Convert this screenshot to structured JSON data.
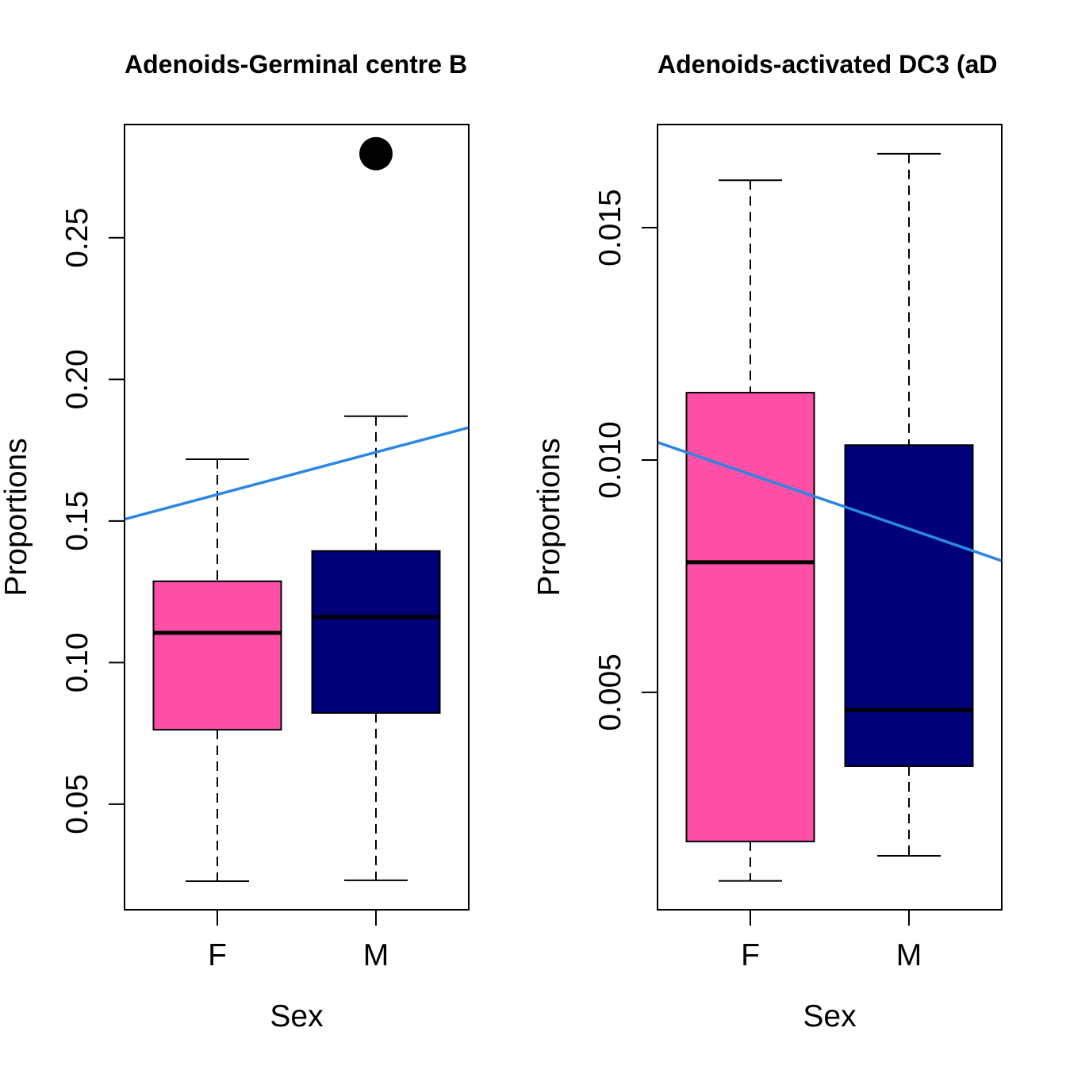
{
  "colors": {
    "F": "#FF4FA7",
    "M": "#000078",
    "trend": "#2B87E3",
    "outlier": "#000000"
  },
  "chart_data": [
    {
      "type": "boxplot",
      "title": "Adenoids-Germinal centre B",
      "xlabel": "Sex",
      "ylabel": "Proportions",
      "categories": [
        "F",
        "M"
      ],
      "ylim": [
        0.0127,
        0.29
      ],
      "yticks": [
        0.05,
        0.1,
        0.15,
        0.2,
        0.25
      ],
      "ytick_labels": [
        "0.05",
        "0.10",
        "0.15",
        "0.20",
        "0.25"
      ],
      "grid": false,
      "boxes": [
        {
          "group": "F",
          "lower_whisker": 0.0228,
          "q1": 0.0763,
          "median": 0.1105,
          "q3": 0.1287,
          "upper_whisker": 0.1718,
          "outliers": []
        },
        {
          "group": "M",
          "lower_whisker": 0.0231,
          "q1": 0.0822,
          "median": 0.1161,
          "q3": 0.1394,
          "upper_whisker": 0.187,
          "outliers": [
            0.2797
          ]
        }
      ],
      "trend_line": {
        "y_at_left_edge": 0.1506,
        "y_at_right_edge": 0.183
      }
    },
    {
      "type": "boxplot",
      "title": "Adenoids-activated DC3 (aD",
      "xlabel": "Sex",
      "ylabel": "Proportions",
      "categories": [
        "F",
        "M"
      ],
      "ylim": [
        0.00032,
        0.01722
      ],
      "yticks": [
        0.005,
        0.01,
        0.015
      ],
      "ytick_labels": [
        "0.005",
        "0.010",
        "0.015"
      ],
      "grid": false,
      "boxes": [
        {
          "group": "F",
          "lower_whisker": 0.00094,
          "q1": 0.00179,
          "median": 0.0078,
          "q3": 0.01145,
          "upper_whisker": 0.01602,
          "outliers": []
        },
        {
          "group": "M",
          "lower_whisker": 0.00148,
          "q1": 0.00341,
          "median": 0.00462,
          "q3": 0.01032,
          "upper_whisker": 0.01659,
          "outliers": []
        }
      ],
      "trend_line": {
        "y_at_left_edge": 0.01038,
        "y_at_right_edge": 0.00783
      }
    }
  ]
}
